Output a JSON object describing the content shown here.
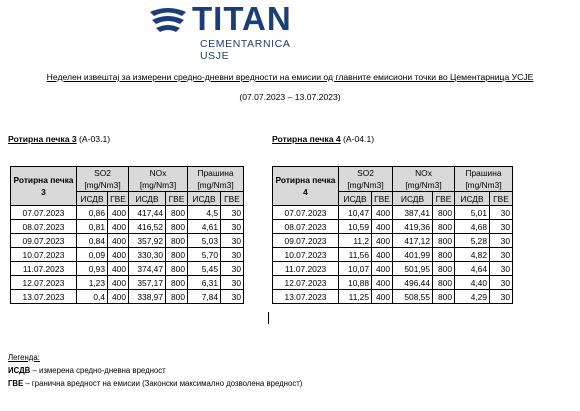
{
  "logo": {
    "word": "TITAN",
    "sub": "CEMENTARNICA USJE"
  },
  "heading": "Неделен извештај за измерени средно-дневни вредности на емисии од главните емисиони точки во Цементарница УСЈЕ",
  "period": "(07.07.2023 – 13.07.2023)",
  "tables": [
    {
      "title": "Ротирна печка 3",
      "code": "(А-03.1)",
      "row_header": "Ротирна печка 3",
      "groups": [
        {
          "name": "SO2",
          "unit": "[mg/Nm3]"
        },
        {
          "name": "NOx",
          "unit": "[mg/Nm3]"
        },
        {
          "name": "Прашина",
          "unit": "[mg/Nm3]"
        }
      ],
      "sub": [
        "ИСДВ",
        "ГВЕ"
      ],
      "rows": [
        [
          "07.07.2023",
          "0,86",
          "400",
          "417,44",
          "800",
          "4,5",
          "30"
        ],
        [
          "08.07.2023",
          "0,81",
          "400",
          "416,52",
          "800",
          "4,61",
          "30"
        ],
        [
          "09.07.2023",
          "0,84",
          "400",
          "357,92",
          "800",
          "5,03",
          "30"
        ],
        [
          "10.07.2023",
          "0,09",
          "400",
          "330,30",
          "800",
          "5,70",
          "30"
        ],
        [
          "11.07.2023",
          "0,93",
          "400",
          "374,47",
          "800",
          "5,45",
          "30"
        ],
        [
          "12.07.2023",
          "1,23",
          "400",
          "357,17",
          "800",
          "6,31",
          "30"
        ],
        [
          "13.07.2023",
          "0,4",
          "400",
          "338,97",
          "800",
          "7,84",
          "30"
        ]
      ]
    },
    {
      "title": "Ротирна печка 4",
      "code": "(А-04.1)",
      "row_header": "Ротирна печка 4",
      "groups": [
        {
          "name": "SO2",
          "unit": "[mg/Nm3]"
        },
        {
          "name": "NOx",
          "unit": "[mg/Nm3]"
        },
        {
          "name": "Прашина",
          "unit": "[mg/Nm3]"
        }
      ],
      "sub": [
        "ИСДВ",
        "ГВЕ"
      ],
      "rows": [
        [
          "07.07.2023",
          "10,47",
          "400",
          "387,41",
          "800",
          "5,01",
          "30"
        ],
        [
          "08.07.2023",
          "10,59",
          "400",
          "419,36",
          "800",
          "4,68",
          "30"
        ],
        [
          "09.07.2023",
          "11,2",
          "400",
          "417,12",
          "800",
          "5,28",
          "30"
        ],
        [
          "10.07.2023",
          "11,56",
          "400",
          "401,99",
          "800",
          "4,82",
          "30"
        ],
        [
          "11.07.2023",
          "10,07",
          "400",
          "501,95",
          "800",
          "4,64",
          "30"
        ],
        [
          "12.07.2023",
          "10,88",
          "400",
          "496,44",
          "800",
          "4,40",
          "30"
        ],
        [
          "13.07.2023",
          "11,25",
          "400",
          "508,55",
          "800",
          "4,29",
          "30"
        ]
      ]
    }
  ],
  "legend": {
    "title": "Легенда:",
    "items": [
      {
        "abbr": "ИСДВ",
        "text": " – измерена средно-дневна вредност"
      },
      {
        "abbr": "ГВЕ",
        "text": " – гранична вредност на емисии (Законски максимално дозволена вредност)"
      }
    ]
  }
}
